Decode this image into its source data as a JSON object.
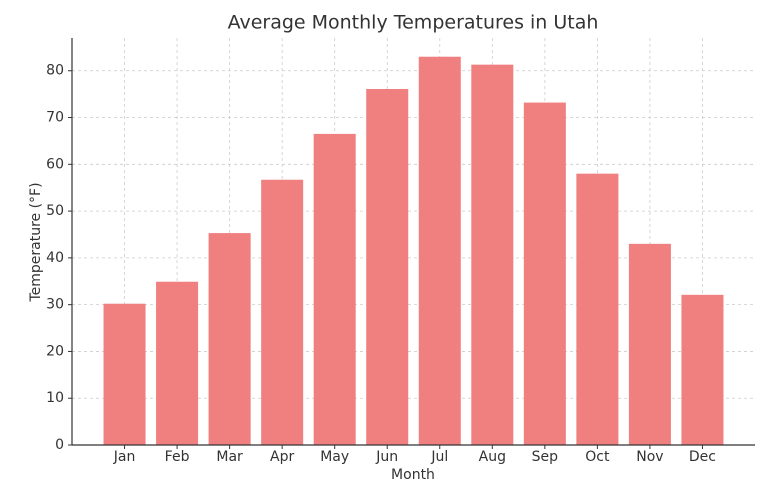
{
  "chart_data": {
    "type": "bar",
    "title": "Average Monthly Temperatures in Utah",
    "x_label": "Month",
    "y_label": "Temperature (°F)",
    "categories": [
      "Jan",
      "Feb",
      "Mar",
      "Apr",
      "May",
      "Jun",
      "Jul",
      "Aug",
      "Sep",
      "Oct",
      "Nov",
      "Dec"
    ],
    "values": [
      30.2,
      34.9,
      45.3,
      56.7,
      66.5,
      76.1,
      83.0,
      81.3,
      73.2,
      58.0,
      43.0,
      32.1
    ],
    "color": "#f08080",
    "ylim": [
      0,
      87
    ],
    "yticks": [
      0,
      10,
      20,
      30,
      40,
      50,
      60,
      70,
      80
    ],
    "grid": true
  }
}
